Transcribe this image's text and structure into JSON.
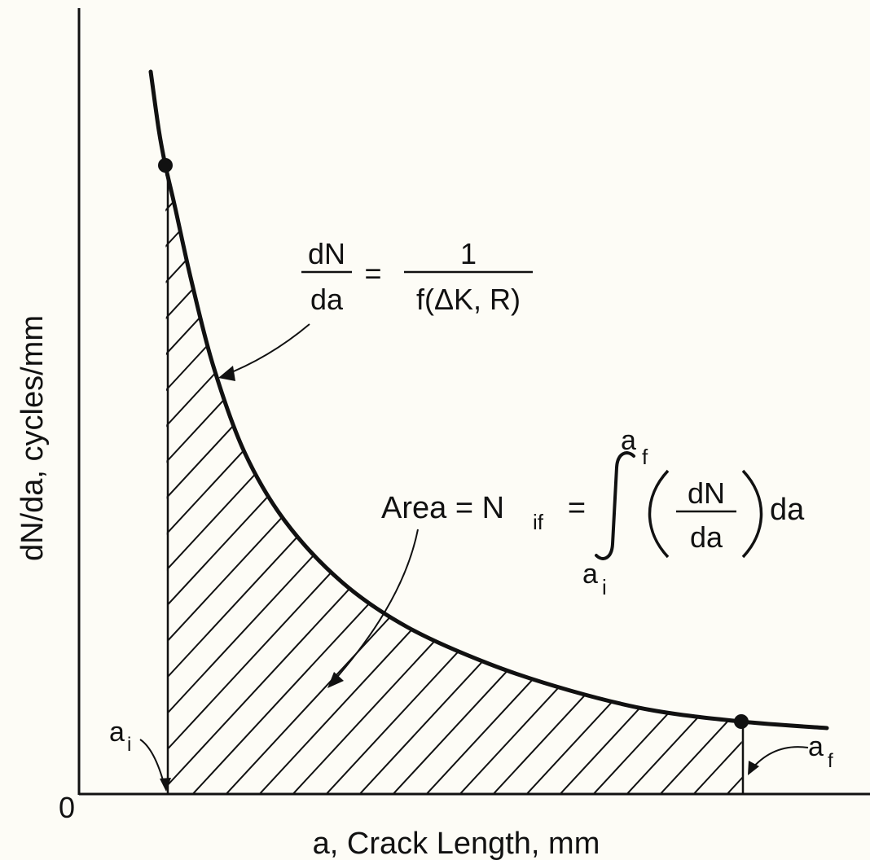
{
  "chart_data": {
    "type": "area",
    "title": "",
    "xlabel": "a, Crack Length, mm",
    "ylabel": "dN/da, cycles/mm",
    "origin_label": "0",
    "axis_scale": "schematic, no numeric ticks",
    "grid": false,
    "legend": "none",
    "curve_label": "dN/da",
    "shading": "hatched area under curve between a_i and a_f",
    "markers": [
      {
        "label": "a",
        "subscript": "i"
      },
      {
        "label": "a",
        "subscript": "f"
      }
    ],
    "equation_curve": {
      "lhs_numerator": "dN",
      "lhs_denominator": "da",
      "equals": "=",
      "rhs_numerator": "1",
      "rhs_denominator": "f(ΔK, R)"
    },
    "equation_area": {
      "prefix": "Area = N",
      "prefix_subscript": "if",
      "equals": "=",
      "integral_upper": "a",
      "integral_upper_subscript": "f",
      "integral_lower": "a",
      "integral_lower_subscript": "i",
      "integrand_numerator": "dN",
      "integrand_denominator": "da",
      "differential": "da"
    },
    "colors": {
      "ink": "#111111",
      "background": "#fdfcf6"
    }
  }
}
